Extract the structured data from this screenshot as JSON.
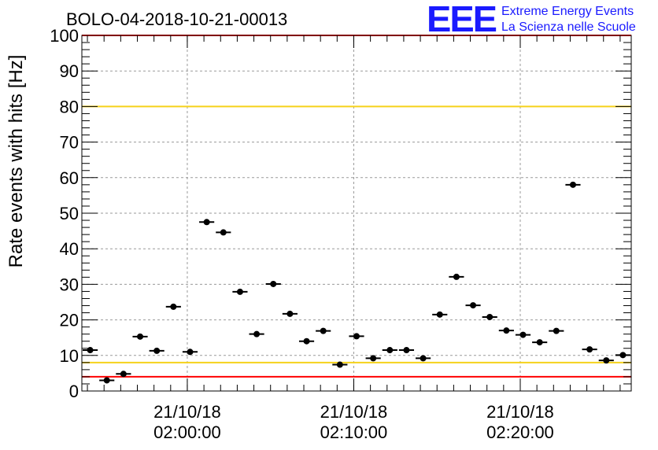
{
  "chart_data": {
    "type": "scatter",
    "title": "BOLO-04-2018-10-21-00013",
    "ylabel": "Rate events with hits [Hz]",
    "xlabel": "",
    "ylim": [
      0,
      100
    ],
    "yticks": [
      0,
      10,
      20,
      30,
      40,
      50,
      60,
      70,
      80,
      90,
      100
    ],
    "xlim": [
      "21/10/18 01:53:40",
      "21/10/18 02:26:40"
    ],
    "x_tick_labels": [
      {
        "x": "21/10/18 02:00:00",
        "date": "21/10/18",
        "time": "02:00:00"
      },
      {
        "x": "21/10/18 02:10:00",
        "date": "21/10/18",
        "time": "02:10:00"
      },
      {
        "x": "21/10/18 02:20:00",
        "date": "21/10/18",
        "time": "02:20:00"
      }
    ],
    "grid": true,
    "reference_lines": [
      {
        "y": 80,
        "color": "#f5d21b"
      },
      {
        "y": 8,
        "color": "#f5d21b"
      },
      {
        "y": 4,
        "color": "#ff0000"
      },
      {
        "y": 100,
        "color": "#ff0000"
      }
    ],
    "series": [
      {
        "marker_color": "#000000",
        "points": [
          {
            "x": "21/10/18 01:54:10",
            "y": 11.5
          },
          {
            "x": "21/10/18 01:55:10",
            "y": 3.0
          },
          {
            "x": "21/10/18 01:56:10",
            "y": 4.8
          },
          {
            "x": "21/10/18 01:57:10",
            "y": 15.3
          },
          {
            "x": "21/10/18 01:58:10",
            "y": 11.3
          },
          {
            "x": "21/10/18 01:59:10",
            "y": 23.7
          },
          {
            "x": "21/10/18 02:00:10",
            "y": 11.0
          },
          {
            "x": "21/10/18 02:01:10",
            "y": 47.5
          },
          {
            "x": "21/10/18 02:02:10",
            "y": 44.6
          },
          {
            "x": "21/10/18 02:03:10",
            "y": 27.9
          },
          {
            "x": "21/10/18 02:04:10",
            "y": 16.0
          },
          {
            "x": "21/10/18 02:05:10",
            "y": 30.1
          },
          {
            "x": "21/10/18 02:06:10",
            "y": 21.7
          },
          {
            "x": "21/10/18 02:07:10",
            "y": 14.0
          },
          {
            "x": "21/10/18 02:08:10",
            "y": 16.9
          },
          {
            "x": "21/10/18 02:09:10",
            "y": 7.4
          },
          {
            "x": "21/10/18 02:10:10",
            "y": 15.4
          },
          {
            "x": "21/10/18 02:11:10",
            "y": 9.2
          },
          {
            "x": "21/10/18 02:12:10",
            "y": 11.5
          },
          {
            "x": "21/10/18 02:13:10",
            "y": 11.5
          },
          {
            "x": "21/10/18 02:14:10",
            "y": 9.2
          },
          {
            "x": "21/10/18 02:15:10",
            "y": 21.5
          },
          {
            "x": "21/10/18 02:16:10",
            "y": 32.1
          },
          {
            "x": "21/10/18 02:17:10",
            "y": 24.1
          },
          {
            "x": "21/10/18 02:18:10",
            "y": 20.8
          },
          {
            "x": "21/10/18 02:19:10",
            "y": 17.0
          },
          {
            "x": "21/10/18 02:20:10",
            "y": 15.8
          },
          {
            "x": "21/10/18 02:21:10",
            "y": 13.7
          },
          {
            "x": "21/10/18 02:22:10",
            "y": 16.9
          },
          {
            "x": "21/10/18 02:23:10",
            "y": 58.0
          },
          {
            "x": "21/10/18 02:24:10",
            "y": 11.7
          },
          {
            "x": "21/10/18 02:25:10",
            "y": 8.6
          },
          {
            "x": "21/10/18 02:26:10",
            "y": 10.1
          }
        ]
      }
    ]
  },
  "logo": {
    "mark": "EEE",
    "line1": "Extreme Energy Events",
    "line2": "La Scienza nelle Scuole"
  }
}
